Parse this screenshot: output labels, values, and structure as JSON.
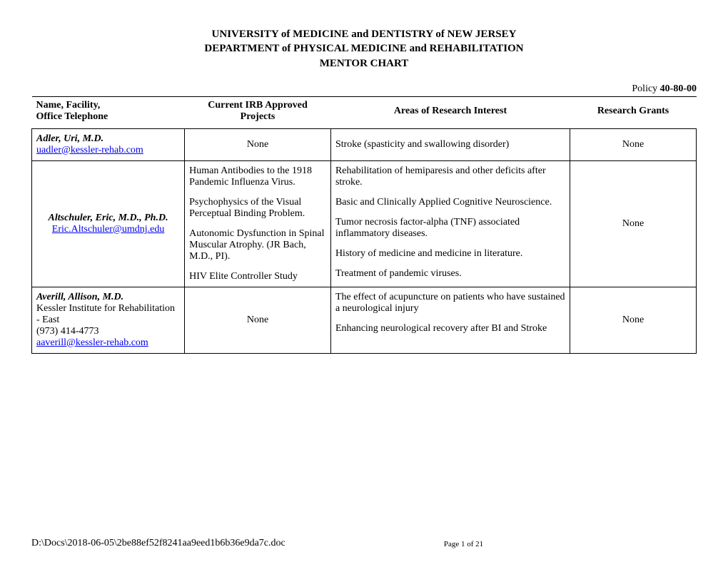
{
  "heading": {
    "line1": "UNIVERSITY of MEDICINE and DENTISTRY of NEW JERSEY",
    "line2": "DEPARTMENT of PHYSICAL MEDICINE and REHABILITATION",
    "line3": "MENTOR CHART"
  },
  "policy": {
    "label": "Policy ",
    "number": "40-80-00"
  },
  "columns": {
    "c1a": "Name, Facility,",
    "c1b": "Office Telephone",
    "c2a": "Current IRB Approved",
    "c2b": "Projects",
    "c3": "Areas of Research Interest",
    "c4": "Research Grants"
  },
  "rows": [
    {
      "name": "Adler, Uri, M.D.",
      "email": "uadler@kessler-rehab.com",
      "projects_center": "None",
      "areas_single": "Stroke (spasticity and swallowing disorder)",
      "grants": "None"
    },
    {
      "name": "Altschuler, Eric, M.D., Ph.D.",
      "email": "Eric.Altschuler@umdnj.edu",
      "projects": [
        "Human Antibodies to the 1918 Pandemic Influenza Virus.",
        "Psychophysics of the Visual Perceptual Binding Problem.",
        "Autonomic Dysfunction in Spinal Muscular Atrophy. (JR Bach, M.D., PI).",
        "HIV Elite Controller Study"
      ],
      "areas": [
        "Rehabilitation of hemiparesis and other deficits after stroke.",
        "Basic and Clinically Applied Cognitive Neuroscience.",
        "Tumor necrosis factor-alpha (TNF) associated inflammatory diseases.",
        "History of medicine and medicine in literature.",
        "Treatment of pandemic viruses."
      ],
      "grants": "None"
    },
    {
      "name": "Averill, Allison, M.D.",
      "facility": "Kessler Institute for Rehabilitation - East",
      "phone": "(973) 414-4773",
      "email": "aaverill@kessler-rehab.com",
      "projects_center": "None",
      "areas": [
        "The effect of acupuncture on patients who have sustained a neurological injury",
        "Enhancing neurological recovery after BI and Stroke"
      ],
      "grants": "None"
    }
  ],
  "footer": {
    "path": "D:\\Docs\\2018-06-05\\2be88ef52f8241aa9eed1b6b36e9da7c.doc",
    "page": "Page 1 of 21"
  }
}
